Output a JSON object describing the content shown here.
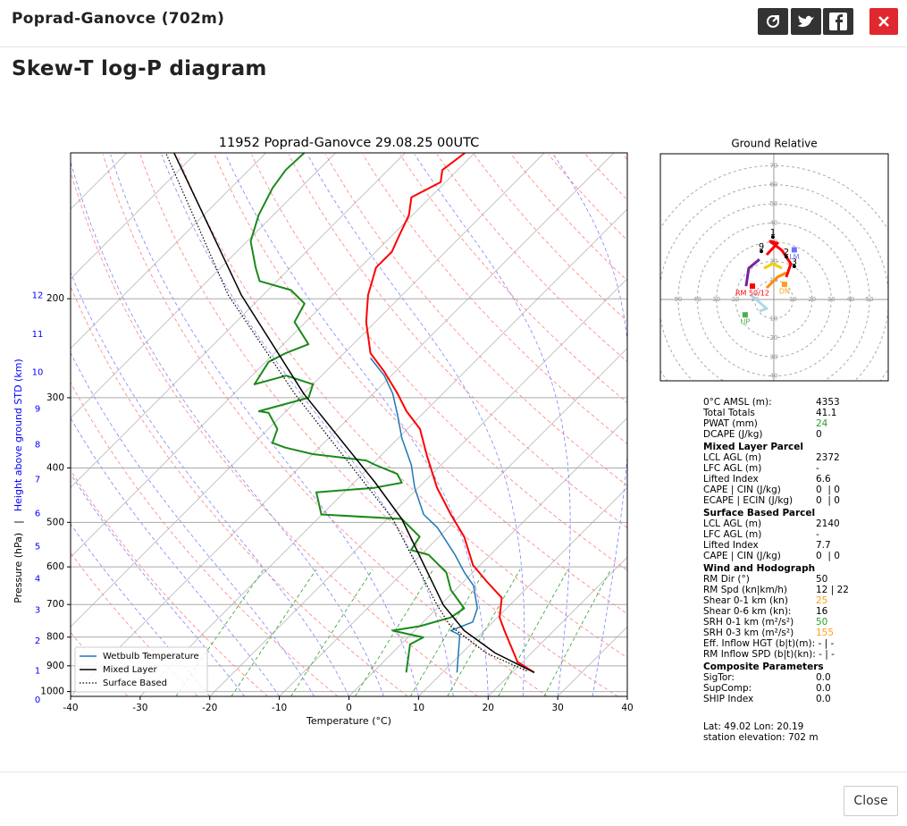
{
  "header": {
    "title": "Poprad-Ganovce (702m)"
  },
  "section_title": "Skew-T log-P diagram",
  "chart_data": [
    {
      "type": "skewt",
      "title": "11952 Poprad-Ganovce 29.08.25 00UTC",
      "x_label": "Temperature (°C)",
      "y_label": "Pressure (hPa)",
      "y_label_separator": "|",
      "y2_label": "Height above ground STD (km)",
      "xlim": [
        -40,
        40
      ],
      "xticks": [
        -40,
        -30,
        -20,
        -10,
        0,
        10,
        20,
        30,
        40
      ],
      "ylim": [
        1020,
        110
      ],
      "log_y": true,
      "yticks": [
        200,
        300,
        400,
        500,
        600,
        700,
        800,
        900,
        1000
      ],
      "y2ticks": [
        0,
        1,
        2,
        3,
        4,
        5,
        6,
        7,
        8,
        9,
        10,
        11,
        12
      ],
      "y2_color": "#0000ff",
      "grid": true,
      "legend": "lower left",
      "series": [
        {
          "color": "#ff0000",
          "width": 2,
          "pressure": [
            925,
            886,
            779,
            738,
            681,
            637,
            596,
            530,
            484,
            434,
            381,
            341,
            317,
            295,
            269,
            250,
            220,
            197,
            176,
            165,
            155,
            142,
            132,
            124,
            118,
            110
          ],
          "values": [
            23.2,
            19.3,
            12.9,
            10.3,
            7.8,
            3.3,
            -1.0,
            -6.4,
            -11.5,
            -17.3,
            -23.3,
            -28.2,
            -32.7,
            -36.5,
            -41.7,
            -46.2,
            -51.3,
            -54.9,
            -57.7,
            -57.7,
            -58.9,
            -60.5,
            -62.7,
            -60.7,
            -62.2,
            -61.4
          ]
        },
        {
          "color": "#1a8a1a",
          "width": 2,
          "pressure": [
            925,
            824,
            801,
            779,
            765,
            738,
            711,
            660,
            614,
            571,
            560,
            530,
            493,
            484,
            442,
            434,
            425,
            410,
            395,
            388,
            378,
            368,
            361,
            341,
            319,
            317,
            300,
            284,
            274,
            284,
            259,
            250,
            241,
            220,
            204,
            193,
            186,
            176,
            158,
            142,
            127,
            118,
            110
          ],
          "values": [
            4.8,
            1.3,
            2.2,
            -3.2,
            0.1,
            3.3,
            3.9,
            -0.6,
            -3.8,
            -8.9,
            -12.1,
            -12.8,
            -17.9,
            -30.1,
            -34.0,
            -26.3,
            -23.1,
            -25.0,
            -29.5,
            -31.4,
            -40.0,
            -44.9,
            -47.4,
            -48.7,
            -52.3,
            -53.9,
            -48.7,
            -50.0,
            -55.1,
            -58.4,
            -59.6,
            -58.4,
            -56.4,
            -61.6,
            -62.8,
            -66.7,
            -72.5,
            -75.0,
            -79.5,
            -82.1,
            -84.0,
            -84.7,
            -84.5
          ]
        },
        {
          "name": "Wetbulb Temperature",
          "color": "#1f77b4",
          "width": 1.5,
          "pressure": [
            925,
            793,
            779,
            752,
            711,
            648,
            614,
            571,
            511,
            484,
            434,
            395,
            354,
            323,
            295,
            274,
            255
          ],
          "values": [
            12.1,
            7.1,
            5.2,
            7.1,
            5.8,
            2.0,
            -1.2,
            -5.1,
            -11.5,
            -15.4,
            -20.5,
            -24.3,
            -29.5,
            -33.3,
            -37.2,
            -41.0,
            -45.5
          ]
        },
        {
          "name": "Mixed Layer",
          "color": "#000000",
          "width": 1.5,
          "pressure": [
            925,
            854,
            779,
            701,
            493,
            425,
            295,
            197,
            110
          ],
          "values": [
            23.2,
            14.8,
            7.1,
            0.4,
            -17.9,
            -26.9,
            -50.0,
            -73.1,
            -103.2
          ]
        },
        {
          "name": "Surface Based",
          "color": "#000000",
          "width": 1.2,
          "dash": "dotted",
          "pressure": [
            919,
            854,
            765,
            701,
            493,
            295,
            197,
            110
          ],
          "values": [
            21.9,
            13.5,
            4.5,
            -0.5,
            -19.2,
            -51.3,
            -75.0,
            -104.4
          ]
        }
      ]
    },
    {
      "type": "hodograph",
      "title": "Ground Relative",
      "xlim": [
        -59.3,
        59.8
      ],
      "ylim": [
        -42.5,
        76.2
      ],
      "rings": [
        10,
        20,
        30,
        40,
        50,
        60,
        70
      ],
      "series": [
        {
          "color": "#add8e6",
          "u": [
            -12.1,
            -6.5,
            -3.7,
            -7.5
          ],
          "values": [
            2.3,
            -2.3,
            -4.7,
            -6.1
          ]
        },
        {
          "color": "#ff8c00",
          "u": [
            -3.7,
            1.9,
            6.5
          ],
          "values": [
            6.1,
            11.7,
            14.0
          ]
        },
        {
          "color": "#f0d000",
          "u": [
            -5.1,
            -0.5,
            4.2
          ],
          "values": [
            16.4,
            18.7,
            16.4
          ]
        },
        {
          "color": "#ff0000",
          "u": [
            -3.7,
            1.9,
            -1.9,
            4.2,
            8.9,
            6.5
          ],
          "values": [
            23.4,
            29.4,
            30.4,
            25.7,
            18.7,
            11.7
          ]
        },
        {
          "color": "#7b1fa2",
          "u": [
            -14.5,
            -13.1,
            -7.5
          ],
          "values": [
            7.0,
            16.4,
            21.0
          ]
        }
      ],
      "markers": [
        {
          "label": "LM",
          "u": 10.7,
          "v": 26,
          "color": "#7070ff"
        },
        {
          "label": "RM 50/12",
          "u": -11.2,
          "v": 7.0,
          "color": "#ff0000"
        },
        {
          "label": "DN",
          "u": 5.6,
          "v": 7.9,
          "color": "#ff9f1a"
        },
        {
          "label": "UP",
          "u": -15,
          "v": -8,
          "color": "#4cae4c"
        }
      ],
      "height_labels": [
        {
          "label": "1",
          "u": -0.5,
          "v": 32.7
        },
        {
          "label": "2",
          "u": 6.5,
          "v": 22.4
        },
        {
          "label": "3",
          "u": 10.7,
          "v": 17.3
        },
        {
          "label": "9",
          "u": -6.5,
          "v": 25.2
        }
      ]
    }
  ],
  "stats": {
    "rows": [
      {
        "label": "0°C AMSL (m):",
        "value": "4353"
      },
      {
        "label": "Total Totals",
        "value": "41.1"
      },
      {
        "label": "PWAT (mm)",
        "value": "24",
        "color": "#2ca02c"
      },
      {
        "label": "DCAPE (J/kg)",
        "value": "0"
      },
      {
        "heading": "Mixed Layer Parcel"
      },
      {
        "label": "LCL AGL (m)",
        "value": "2372"
      },
      {
        "label": "LFC AGL (m)",
        "value": "-"
      },
      {
        "label": "Lifted Index",
        "value": "6.6"
      },
      {
        "label": "CAPE | CIN (J/kg)",
        "value": "0  | 0"
      },
      {
        "label": "ECAPE | ECIN (J/kg)",
        "value": "0  | 0"
      },
      {
        "heading": "Surface Based Parcel"
      },
      {
        "label": "LCL AGL (m)",
        "value": "2140"
      },
      {
        "label": "LFC AGL (m)",
        "value": "-"
      },
      {
        "label": "Lifted Index",
        "value": "7.7"
      },
      {
        "label": "CAPE | CIN (J/kg)",
        "value": "0  | 0"
      },
      {
        "heading": "Wind and Hodograph"
      },
      {
        "label": "RM Dir (°)",
        "value": "50"
      },
      {
        "label": "RM Spd (kn|km/h)",
        "value": "12 | 22"
      },
      {
        "label": "Shear 0-1 km (kn)",
        "value": "25",
        "color": "#ff9f1a"
      },
      {
        "label": "Shear 0-6 km (kn):",
        "value": "16"
      },
      {
        "label": "SRH 0-1 km (m²/s²)",
        "value": "50",
        "color": "#2ca02c"
      },
      {
        "label": "SRH 0-3 km (m²/s²)",
        "value": "155",
        "color": "#ff9f1a"
      },
      {
        "label": "Eff. Inflow HGT (b|t)(m): - | -"
      },
      {
        "label": "RM Inflow SPD (b|t)(kn): - | -"
      },
      {
        "heading": "Composite Parameters"
      },
      {
        "label": "SigTor:",
        "value": "0.0"
      },
      {
        "label": "SupComp:",
        "value": "0.0"
      },
      {
        "label": "SHIP Index",
        "value": "0.0"
      }
    ],
    "location": "Lat: 49.02  Lon: 20.19",
    "elevation": "station elevation: 702 m"
  },
  "footer": {
    "close": "Close"
  }
}
